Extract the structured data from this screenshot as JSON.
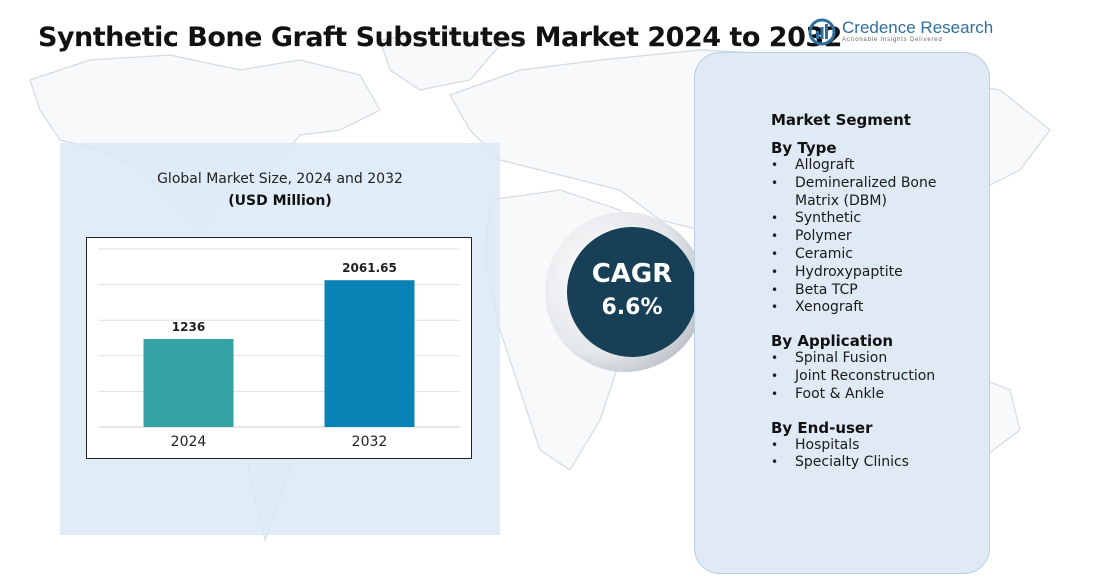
{
  "title": "Synthetic Bone Graft Substitutes Market 2024 to 2032",
  "logo": {
    "name": "Credence Research",
    "tagline": "Actionable Insights Delivered"
  },
  "chart": {
    "subtitle": "Global Market Size, 2024 and 2032",
    "unit": "(USD Million)"
  },
  "chart_data": {
    "type": "bar",
    "categories": [
      "2024",
      "2032"
    ],
    "values": [
      1236,
      2061.65
    ],
    "value_labels": [
      "1236",
      "2061.65"
    ],
    "bar_colors": [
      "#35a3a5",
      "#0982b6"
    ],
    "title": "Global Market Size, 2024 and 2032",
    "ylabel": "(USD Million)",
    "ylim": [
      0,
      2500
    ],
    "grid": true,
    "legend": "none"
  },
  "cagr": {
    "label": "CAGR",
    "value": "6.6%"
  },
  "segments": {
    "heading": "Market Segment",
    "groups": [
      {
        "title": "By Type",
        "items": [
          "Allograft",
          "Demineralized Bone Matrix (DBM)",
          "Synthetic",
          "Polymer",
          "Ceramic",
          "Hydroxypaptite",
          "Beta TCP",
          "Xenograft"
        ]
      },
      {
        "title": "By Application",
        "items": [
          "Spinal Fusion",
          "Joint Reconstruction",
          "Foot & Ankle"
        ]
      },
      {
        "title": "By End-user",
        "items": [
          "Hospitals",
          "Specialty Clinics"
        ]
      }
    ]
  },
  "colors": {
    "title": "#111111",
    "cagr_circle": "#173f55",
    "panel": "#dfeaf4",
    "chart_panel": "#dbe9f6"
  }
}
